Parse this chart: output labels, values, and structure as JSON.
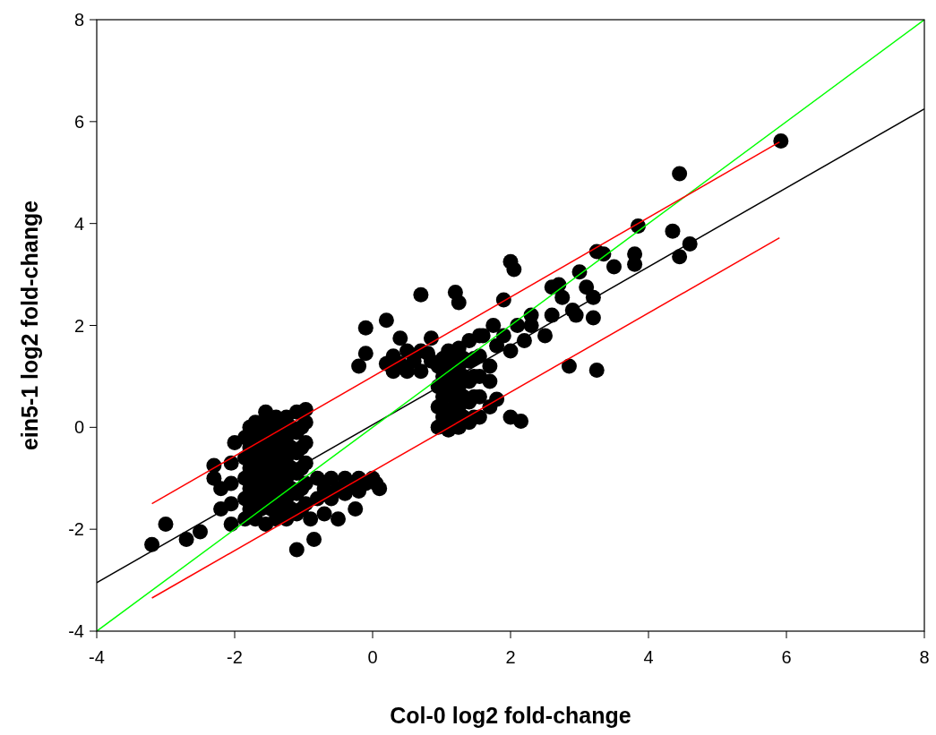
{
  "chart_data": {
    "type": "scatter",
    "xlabel": "Col-0 log2 fold-change",
    "ylabel": "ein5-1 log2 fold-change",
    "xlim": [
      -4,
      8
    ],
    "ylim": [
      -4,
      8
    ],
    "xticks": [
      -4,
      -2,
      0,
      2,
      4,
      6,
      8
    ],
    "yticks": [
      -4,
      -2,
      0,
      2,
      4,
      6,
      8
    ],
    "grid": false,
    "series": [
      {
        "marker": "circle",
        "color": "#000000",
        "x": [
          -1.85,
          -1.85,
          -1.85,
          -1.85,
          -1.85,
          -1.7,
          -1.7,
          -1.7,
          -1.7,
          -1.7,
          -1.7,
          -1.55,
          -1.55,
          -1.55,
          -1.55,
          -1.55,
          -1.55,
          -1.4,
          -1.4,
          -1.4,
          -1.4,
          -1.4,
          -1.4,
          -1.25,
          -1.25,
          -1.25,
          -1.25,
          -1.25,
          -1.25,
          -1.1,
          -1.1,
          -1.1,
          -1.1,
          -1.1,
          -1.1,
          -0.97,
          -0.97,
          -0.97,
          -0.97,
          -0.97,
          -0.97,
          -2.05,
          -2.05,
          -2.05,
          -2.05,
          -2.2,
          -2.2,
          -0.8,
          -0.8,
          -0.6,
          -0.6,
          -0.4,
          -0.4,
          -0.2,
          -0.2,
          0.0,
          0.1,
          -0.7,
          -0.9,
          0.95,
          0.95,
          0.95,
          0.95,
          1.1,
          1.1,
          1.1,
          1.1,
          1.1,
          1.25,
          1.25,
          1.25,
          1.25,
          1.25,
          1.4,
          1.4,
          1.4,
          1.4,
          1.4,
          1.55,
          1.55,
          1.55,
          1.55,
          1.55,
          0.3,
          0.3,
          0.5,
          0.5,
          0.7,
          0.7,
          0.85,
          0.4,
          0.85,
          1.7,
          1.8,
          1.9,
          2.0,
          2.1,
          2.2,
          2.3,
          1.7,
          1.6,
          1.75,
          -3.2,
          -3.0,
          -2.7,
          -2.5,
          -2.3,
          -2.3,
          -2.0,
          -1.55,
          -1.1,
          -0.85,
          -0.5,
          -0.25,
          0.05,
          -0.1,
          -0.2,
          -0.1,
          0.7,
          0.2,
          1.2,
          1.25,
          1.9,
          2.0,
          2.05,
          2.0,
          2.15,
          2.85,
          3.25,
          3.2,
          3.0,
          3.25,
          3.35,
          3.5,
          3.85,
          3.8,
          3.8,
          4.35,
          4.45,
          4.45,
          4.6,
          5.92,
          2.6,
          2.7,
          2.75,
          2.9,
          2.95,
          3.1,
          3.2,
          2.3,
          2.5,
          2.6,
          1.7,
          1.8,
          -1.78,
          -1.78,
          -1.78,
          -1.78,
          -1.78,
          -1.62,
          -1.62,
          -1.62,
          -1.62,
          -1.62,
          -1.47,
          -1.47,
          -1.47,
          -1.47,
          -1.47,
          -1.32,
          -1.32,
          -1.32,
          -1.32,
          -1.32,
          -1.18,
          -1.18,
          -1.18,
          -1.18,
          -1.18,
          -1.03,
          -1.03,
          -1.03,
          -1.03,
          -1.03,
          1.02,
          1.02,
          1.02,
          1.02,
          1.17,
          1.17,
          1.17,
          1.17,
          1.32,
          1.32,
          1.32,
          1.32,
          1.47,
          1.47,
          1.47,
          1.47,
          -0.7,
          -0.5,
          -0.3,
          -0.1,
          0.4,
          0.6,
          0.2,
          0.8
        ],
        "values": [
          -1.8,
          -1.4,
          -1.0,
          -0.6,
          -0.2,
          -1.8,
          -1.4,
          -1.0,
          -0.6,
          -0.2,
          0.1,
          -1.9,
          -1.4,
          -1.0,
          -0.6,
          -0.2,
          0.15,
          -1.8,
          -1.4,
          -1.0,
          -0.6,
          -0.2,
          0.2,
          -1.8,
          -1.4,
          -1.0,
          -0.6,
          -0.2,
          0.2,
          -1.7,
          -1.3,
          -0.9,
          -0.5,
          -0.1,
          0.3,
          -1.5,
          -1.1,
          -0.7,
          -0.3,
          0.1,
          0.35,
          -1.9,
          -1.5,
          -1.1,
          -0.7,
          -1.2,
          -1.6,
          -1.0,
          -1.4,
          -1.0,
          -1.4,
          -1.0,
          -1.3,
          -1.0,
          -1.25,
          -1.0,
          -1.2,
          -1.7,
          -1.8,
          0.0,
          0.4,
          0.8,
          1.2,
          -0.05,
          0.35,
          0.75,
          1.15,
          1.5,
          0.0,
          0.4,
          0.8,
          1.2,
          1.55,
          0.1,
          0.5,
          0.9,
          1.3,
          1.7,
          0.2,
          0.6,
          1.0,
          1.4,
          1.8,
          1.1,
          1.4,
          1.1,
          1.5,
          1.1,
          1.5,
          1.3,
          1.75,
          1.75,
          1.2,
          1.6,
          1.8,
          1.5,
          2.0,
          1.7,
          2.2,
          0.9,
          1.8,
          2.0,
          -2.3,
          -1.9,
          -2.2,
          -2.05,
          -0.75,
          -1.0,
          -0.3,
          0.3,
          -2.4,
          -2.2,
          -1.8,
          -1.6,
          -1.1,
          1.95,
          1.2,
          1.45,
          2.6,
          2.1,
          2.65,
          2.45,
          2.5,
          3.25,
          3.1,
          0.2,
          0.12,
          1.2,
          1.12,
          2.15,
          3.05,
          3.45,
          3.4,
          3.15,
          3.95,
          3.4,
          3.2,
          3.85,
          4.98,
          3.35,
          3.6,
          5.62,
          2.75,
          2.8,
          2.55,
          2.3,
          2.2,
          2.75,
          2.55,
          2.0,
          1.8,
          2.2,
          0.4,
          0.55,
          -1.6,
          -1.2,
          -0.8,
          -0.4,
          0.0,
          -1.6,
          -1.2,
          -0.8,
          -0.4,
          0.0,
          -1.6,
          -1.2,
          -0.8,
          -0.4,
          0.0,
          -1.6,
          -1.2,
          -0.8,
          -0.4,
          0.0,
          -1.6,
          -1.2,
          -0.8,
          -0.4,
          0.0,
          -1.6,
          -1.2,
          -0.8,
          -0.4,
          0.0,
          0.2,
          0.6,
          1.0,
          1.35,
          0.2,
          0.6,
          1.0,
          1.35,
          0.2,
          0.6,
          1.0,
          1.35,
          0.2,
          0.6,
          1.0,
          1.35,
          -1.2,
          -1.2,
          -1.15,
          -1.1,
          1.25,
          1.3,
          1.25,
          1.45
        ]
      },
      {
        "type": "line",
        "marker": "none",
        "color": "#000000",
        "x": [
          -4,
          8
        ],
        "values": [
          -3.05,
          6.25
        ]
      },
      {
        "type": "line",
        "marker": "none",
        "color": "#00ff00",
        "x": [
          -4,
          8
        ],
        "values": [
          -4,
          8
        ]
      },
      {
        "type": "line",
        "marker": "none",
        "color": "#ff0000",
        "x": [
          -3.2,
          5.9
        ],
        "values": [
          -1.5,
          5.6
        ]
      },
      {
        "type": "line",
        "marker": "none",
        "color": "#ff0000",
        "x": [
          -3.2,
          5.9
        ],
        "values": [
          -3.35,
          3.72
        ]
      }
    ]
  }
}
